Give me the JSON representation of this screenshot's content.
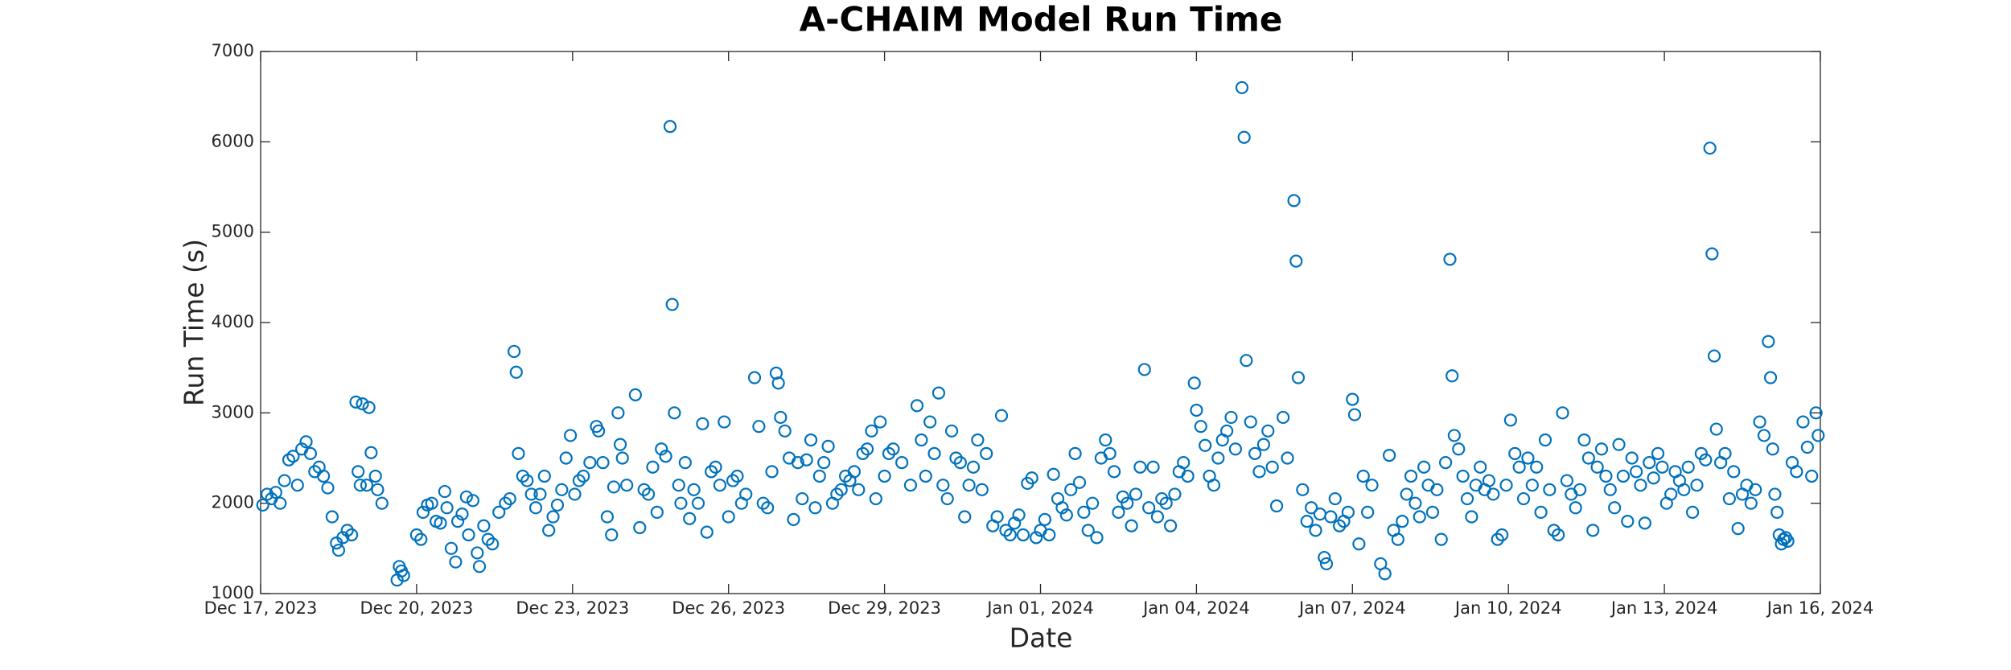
{
  "chart_data": {
    "type": "scatter",
    "title": "A-CHAIM Model Run Time",
    "x_label": "Date",
    "y_label": "Run Time (s)",
    "xlim": [
      "2023-12-17T00:00",
      "2024-01-16T00:00"
    ],
    "xticks": [
      {
        "value": "2023-12-17T00:00",
        "label": "Dec 17, 2023"
      },
      {
        "value": "2023-12-20T00:00",
        "label": "Dec 20, 2023"
      },
      {
        "value": "2023-12-23T00:00",
        "label": "Dec 23, 2023"
      },
      {
        "value": "2023-12-26T00:00",
        "label": "Dec 26, 2023"
      },
      {
        "value": "2023-12-29T00:00",
        "label": "Dec 29, 2023"
      },
      {
        "value": "2024-01-01T00:00",
        "label": "Jan 01, 2024"
      },
      {
        "value": "2024-01-04T00:00",
        "label": "Jan 04, 2024"
      },
      {
        "value": "2024-01-07T00:00",
        "label": "Jan 07, 2024"
      },
      {
        "value": "2024-01-10T00:00",
        "label": "Jan 10, 2024"
      },
      {
        "value": "2024-01-13T00:00",
        "label": "Jan 13, 2024"
      },
      {
        "value": "2024-01-16T00:00",
        "label": "Jan 16, 2024"
      }
    ],
    "ylim": [
      1000,
      7000
    ],
    "yticks": [
      1000,
      2000,
      3000,
      4000,
      5000,
      6000,
      7000
    ],
    "grid": false,
    "color": "#0072bd",
    "x": [
      "2023-12-17T01:00",
      "2023-12-17T03:00",
      "2023-12-17T05:00",
      "2023-12-17T07:00",
      "2023-12-17T09:00",
      "2023-12-17T11:00",
      "2023-12-17T13:00",
      "2023-12-17T15:00",
      "2023-12-17T17:00",
      "2023-12-17T19:00",
      "2023-12-17T21:00",
      "2023-12-17T23:00",
      "2023-12-18T01:00",
      "2023-12-18T03:00",
      "2023-12-18T05:00",
      "2023-12-18T07:00",
      "2023-12-18T09:00",
      "2023-12-18T11:00",
      "2023-12-18T12:00",
      "2023-12-18T14:00",
      "2023-12-18T16:00",
      "2023-12-18T18:00",
      "2023-12-18T20:00",
      "2023-12-18T21:00",
      "2023-12-18T22:00",
      "2023-12-18T23:00",
      "2023-12-19T01:00",
      "2023-12-19T02:00",
      "2023-12-19T03:00",
      "2023-12-19T05:00",
      "2023-12-19T06:00",
      "2023-12-19T08:00",
      "2023-12-19T15:00",
      "2023-12-19T16:00",
      "2023-12-19T17:00",
      "2023-12-19T18:00",
      "2023-12-20T00:00",
      "2023-12-20T02:00",
      "2023-12-20T03:00",
      "2023-12-20T05:00",
      "2023-12-20T07:00",
      "2023-12-20T09:00",
      "2023-12-20T11:00",
      "2023-12-20T13:00",
      "2023-12-20T14:00",
      "2023-12-20T16:00",
      "2023-12-20T18:00",
      "2023-12-20T19:00",
      "2023-12-20T21:00",
      "2023-12-20T23:00",
      "2023-12-21T00:00",
      "2023-12-21T02:00",
      "2023-12-21T04:00",
      "2023-12-21T05:00",
      "2023-12-21T07:00",
      "2023-12-21T09:00",
      "2023-12-21T11:00",
      "2023-12-21T14:00",
      "2023-12-21T17:00",
      "2023-12-21T19:00",
      "2023-12-21T21:00",
      "2023-12-21T22:00",
      "2023-12-21T23:00",
      "2023-12-22T01:00",
      "2023-12-22T03:00",
      "2023-12-22T05:00",
      "2023-12-22T07:00",
      "2023-12-22T09:00",
      "2023-12-22T11:00",
      "2023-12-22T13:00",
      "2023-12-22T15:00",
      "2023-12-22T17:00",
      "2023-12-22T19:00",
      "2023-12-22T21:00",
      "2023-12-22T23:00",
      "2023-12-23T01:00",
      "2023-12-23T03:00",
      "2023-12-23T05:00",
      "2023-12-23T08:00",
      "2023-12-23T11:00",
      "2023-12-23T12:00",
      "2023-12-23T14:00",
      "2023-12-23T16:00",
      "2023-12-23T18:00",
      "2023-12-23T19:00",
      "2023-12-23T21:00",
      "2023-12-23T22:00",
      "2023-12-23T23:00",
      "2023-12-24T01:00",
      "2023-12-24T05:00",
      "2023-12-24T07:00",
      "2023-12-24T09:00",
      "2023-12-24T11:00",
      "2023-12-24T13:00",
      "2023-12-24T15:00",
      "2023-12-24T17:00",
      "2023-12-24T19:00",
      "2023-12-24T21:00",
      "2023-12-24T22:00",
      "2023-12-24T23:00",
      "2023-12-25T01:00",
      "2023-12-25T02:00",
      "2023-12-25T04:00",
      "2023-12-25T06:00",
      "2023-12-25T08:00",
      "2023-12-25T10:00",
      "2023-12-25T12:00",
      "2023-12-25T14:00",
      "2023-12-25T16:00",
      "2023-12-25T18:00",
      "2023-12-25T20:00",
      "2023-12-25T22:00",
      "2023-12-26T00:00",
      "2023-12-26T02:00",
      "2023-12-26T04:00",
      "2023-12-26T06:00",
      "2023-12-26T08:00",
      "2023-12-26T12:00",
      "2023-12-26T14:00",
      "2023-12-26T16:00",
      "2023-12-26T18:00",
      "2023-12-26T20:00",
      "2023-12-26T22:00",
      "2023-12-26T23:00",
      "2023-12-27T00:00",
      "2023-12-27T02:00",
      "2023-12-27T04:00",
      "2023-12-27T06:00",
      "2023-12-27T08:00",
      "2023-12-27T10:00",
      "2023-12-27T12:00",
      "2023-12-27T14:00",
      "2023-12-27T16:00",
      "2023-12-27T18:00",
      "2023-12-27T20:00",
      "2023-12-27T22:00",
      "2023-12-28T00:00",
      "2023-12-28T02:00",
      "2023-12-28T04:00",
      "2023-12-28T06:00",
      "2023-12-28T08:00",
      "2023-12-28T10:00",
      "2023-12-28T12:00",
      "2023-12-28T14:00",
      "2023-12-28T16:00",
      "2023-12-28T18:00",
      "2023-12-28T20:00",
      "2023-12-28T22:00",
      "2023-12-29T00:00",
      "2023-12-29T02:00",
      "2023-12-29T04:00",
      "2023-12-29T08:00",
      "2023-12-29T12:00",
      "2023-12-29T15:00",
      "2023-12-29T17:00",
      "2023-12-29T19:00",
      "2023-12-29T21:00",
      "2023-12-29T23:00",
      "2023-12-30T01:00",
      "2023-12-30T03:00",
      "2023-12-30T05:00",
      "2023-12-30T07:00",
      "2023-12-30T09:00",
      "2023-12-30T11:00",
      "2023-12-30T13:00",
      "2023-12-30T15:00",
      "2023-12-30T17:00",
      "2023-12-30T19:00",
      "2023-12-30T21:00",
      "2023-12-30T23:00",
      "2023-12-31T02:00",
      "2023-12-31T04:00",
      "2023-12-31T06:00",
      "2023-12-31T08:00",
      "2023-12-31T10:00",
      "2023-12-31T12:00",
      "2023-12-31T14:00",
      "2023-12-31T16:00",
      "2023-12-31T18:00",
      "2023-12-31T20:00",
      "2023-12-31T22:00",
      "2024-01-01T00:00",
      "2024-01-01T02:00",
      "2024-01-01T04:00",
      "2024-01-01T06:00",
      "2024-01-01T08:00",
      "2024-01-01T10:00",
      "2024-01-01T12:00",
      "2024-01-01T14:00",
      "2024-01-01T16:00",
      "2024-01-01T18:00",
      "2024-01-01T20:00",
      "2024-01-01T22:00",
      "2024-01-02T00:00",
      "2024-01-02T02:00",
      "2024-01-02T04:00",
      "2024-01-02T06:00",
      "2024-01-02T08:00",
      "2024-01-02T10:00",
      "2024-01-02T12:00",
      "2024-01-02T14:00",
      "2024-01-02T16:00",
      "2024-01-02T18:00",
      "2024-01-02T20:00",
      "2024-01-02T22:00",
      "2024-01-03T00:00",
      "2024-01-03T02:00",
      "2024-01-03T04:00",
      "2024-01-03T06:00",
      "2024-01-03T08:00",
      "2024-01-03T10:00",
      "2024-01-03T12:00",
      "2024-01-03T14:00",
      "2024-01-03T16:00",
      "2024-01-03T18:00",
      "2024-01-03T20:00",
      "2024-01-03T23:00",
      "2024-01-04T00:00",
      "2024-01-04T02:00",
      "2024-01-04T04:00",
      "2024-01-04T06:00",
      "2024-01-04T08:00",
      "2024-01-04T10:00",
      "2024-01-04T12:00",
      "2024-01-04T14:00",
      "2024-01-04T16:00",
      "2024-01-04T18:00",
      "2024-01-04T21:00",
      "2024-01-04T22:00",
      "2024-01-04T23:00",
      "2024-01-05T01:00",
      "2024-01-05T03:00",
      "2024-01-05T05:00",
      "2024-01-05T07:00",
      "2024-01-05T09:00",
      "2024-01-05T11:00",
      "2024-01-05T13:00",
      "2024-01-05T16:00",
      "2024-01-05T18:00",
      "2024-01-05T21:00",
      "2024-01-05T22:00",
      "2024-01-05T23:00",
      "2024-01-06T01:00",
      "2024-01-06T03:00",
      "2024-01-06T05:00",
      "2024-01-06T07:00",
      "2024-01-06T09:00",
      "2024-01-06T11:00",
      "2024-01-06T12:00",
      "2024-01-06T14:00",
      "2024-01-06T16:00",
      "2024-01-06T18:00",
      "2024-01-06T20:00",
      "2024-01-06T22:00",
      "2024-01-07T00:00",
      "2024-01-07T01:00",
      "2024-01-07T03:00",
      "2024-01-07T05:00",
      "2024-01-07T07:00",
      "2024-01-07T09:00",
      "2024-01-07T13:00",
      "2024-01-07T15:00",
      "2024-01-07T17:00",
      "2024-01-07T19:00",
      "2024-01-07T21:00",
      "2024-01-07T23:00",
      "2024-01-08T01:00",
      "2024-01-08T03:00",
      "2024-01-08T05:00",
      "2024-01-08T07:00",
      "2024-01-08T09:00",
      "2024-01-08T11:00",
      "2024-01-08T13:00",
      "2024-01-08T15:00",
      "2024-01-08T17:00",
      "2024-01-08T19:00",
      "2024-01-08T21:00",
      "2024-01-08T22:00",
      "2024-01-08T23:00",
      "2024-01-09T01:00",
      "2024-01-09T03:00",
      "2024-01-09T05:00",
      "2024-01-09T07:00",
      "2024-01-09T09:00",
      "2024-01-09T11:00",
      "2024-01-09T13:00",
      "2024-01-09T15:00",
      "2024-01-09T17:00",
      "2024-01-09T19:00",
      "2024-01-09T21:00",
      "2024-01-09T23:00",
      "2024-01-10T01:00",
      "2024-01-10T03:00",
      "2024-01-10T05:00",
      "2024-01-10T07:00",
      "2024-01-10T09:00",
      "2024-01-10T11:00",
      "2024-01-10T13:00",
      "2024-01-10T15:00",
      "2024-01-10T17:00",
      "2024-01-10T19:00",
      "2024-01-10T21:00",
      "2024-01-10T23:00",
      "2024-01-11T01:00",
      "2024-01-11T03:00",
      "2024-01-11T05:00",
      "2024-01-11T07:00",
      "2024-01-11T09:00",
      "2024-01-11T11:00",
      "2024-01-11T13:00",
      "2024-01-11T15:00",
      "2024-01-11T17:00",
      "2024-01-11T19:00",
      "2024-01-11T21:00",
      "2024-01-11T23:00",
      "2024-01-12T01:00",
      "2024-01-12T03:00",
      "2024-01-12T05:00",
      "2024-01-12T07:00",
      "2024-01-12T09:00",
      "2024-01-12T11:00",
      "2024-01-12T13:00",
      "2024-01-12T15:00",
      "2024-01-12T17:00",
      "2024-01-12T19:00",
      "2024-01-12T21:00",
      "2024-01-12T23:00",
      "2024-01-13T01:00",
      "2024-01-13T03:00",
      "2024-01-13T05:00",
      "2024-01-13T07:00",
      "2024-01-13T09:00",
      "2024-01-13T11:00",
      "2024-01-13T13:00",
      "2024-01-13T15:00",
      "2024-01-13T17:00",
      "2024-01-13T19:00",
      "2024-01-13T21:00",
      "2024-01-13T22:00",
      "2024-01-13T23:00",
      "2024-01-14T00:00",
      "2024-01-14T02:00",
      "2024-01-14T04:00",
      "2024-01-14T06:00",
      "2024-01-14T08:00",
      "2024-01-14T10:00",
      "2024-01-14T12:00",
      "2024-01-14T14:00",
      "2024-01-14T16:00",
      "2024-01-14T18:00",
      "2024-01-14T20:00",
      "2024-01-14T22:00",
      "2024-01-15T00:00",
      "2024-01-15T01:00",
      "2024-01-15T02:00",
      "2024-01-15T03:00",
      "2024-01-15T04:00",
      "2024-01-15T05:00",
      "2024-01-15T06:00",
      "2024-01-15T07:00",
      "2024-01-15T08:00",
      "2024-01-15T09:00",
      "2024-01-15T11:00",
      "2024-01-15T13:00",
      "2024-01-15T16:00",
      "2024-01-15T18:00",
      "2024-01-15T20:00",
      "2024-01-15T22:00",
      "2024-01-15T23:00"
    ],
    "values": [
      1980,
      2100,
      2050,
      2120,
      2000,
      2250,
      2480,
      2520,
      2200,
      2600,
      2680,
      2550,
      2350,
      2400,
      2300,
      2170,
      1850,
      1560,
      1480,
      1620,
      1700,
      1650,
      3120,
      2350,
      2200,
      3100,
      2200,
      3060,
      2560,
      2300,
      2150,
      2000,
      1150,
      1300,
      1250,
      1200,
      1650,
      1600,
      1900,
      1980,
      2000,
      1800,
      1780,
      2130,
      1950,
      1500,
      1350,
      1800,
      1880,
      2070,
      1650,
      2030,
      1450,
      1300,
      1750,
      1600,
      1550,
      1900,
      2000,
      2050,
      3680,
      3450,
      2550,
      2300,
      2250,
      2100,
      1950,
      2100,
      2300,
      1700,
      1850,
      1980,
      2150,
      2500,
      2750,
      2100,
      2250,
      2300,
      2450,
      2850,
      2800,
      2450,
      1850,
      1650,
      2180,
      3000,
      2650,
      2500,
      2200,
      3200,
      1730,
      2150,
      2100,
      2400,
      1900,
      2600,
      2520,
      6170,
      4200,
      3000,
      2200,
      2000,
      2450,
      1830,
      2150,
      2000,
      2880,
      1680,
      2350,
      2400,
      2200,
      2900,
      1850,
      2250,
      2300,
      2000,
      2100,
      3390,
      2850,
      2000,
      1950,
      2350,
      3440,
      3330,
      2950,
      2800,
      2500,
      1820,
      2450,
      2050,
      2480,
      2700,
      1950,
      2300,
      2450,
      2630,
      2000,
      2100,
      2150,
      2300,
      2250,
      2350,
      2150,
      2550,
      2600,
      2800,
      2050,
      2900,
      2300,
      2550,
      2600,
      2450,
      2200,
      3080,
      2700,
      2300,
      2900,
      2550,
      3220,
      2200,
      2050,
      2800,
      2500,
      2450,
      1850,
      2200,
      2400,
      2700,
      2150,
      2550,
      1750,
      1850,
      2970,
      1700,
      1650,
      1780,
      1870,
      1650,
      2220,
      2280,
      1620,
      1700,
      1820,
      1650,
      2320,
      2050,
      1950,
      1870,
      2150,
      2550,
      2230,
      1900,
      1700,
      2000,
      1620,
      2500,
      2700,
      2550,
      2350,
      1900,
      2070,
      2000,
      1750,
      2100,
      2400,
      3480,
      1950,
      2400,
      1850,
      2050,
      2000,
      1750,
      2100,
      2350,
      2450,
      2300,
      3330,
      3030,
      2850,
      2640,
      2300,
      2200,
      2500,
      2700,
      2800,
      2950,
      2600,
      6600,
      6050,
      3580,
      2900,
      2550,
      2350,
      2650,
      2800,
      2400,
      1970,
      2950,
      2500,
      5350,
      4680,
      3390,
      2150,
      1800,
      1950,
      1700,
      1880,
      1400,
      1330,
      1850,
      2050,
      1750,
      1800,
      1900,
      3150,
      2980,
      1550,
      2300,
      1900,
      2200,
      1330,
      1220,
      2530,
      1700,
      1600,
      1800,
      2100,
      2300,
      2000,
      1850,
      2400,
      2200,
      1900,
      2150,
      1600,
      2450,
      4700,
      3410,
      2750,
      2600,
      2300,
      2050,
      1850,
      2200,
      2400,
      2150,
      2250,
      2100,
      1600,
      1650,
      2200,
      2920,
      2550,
      2400,
      2050,
      2500,
      2200,
      2400,
      1900,
      2700,
      2150,
      1700,
      1650,
      3000,
      2250,
      2100,
      1950,
      2150,
      2700,
      2500,
      1700,
      2400,
      2600,
      2300,
      2150,
      1950,
      2650,
      2300,
      1800,
      2500,
      2350,
      2200,
      1780,
      2450,
      2280,
      2550,
      2400,
      2000,
      2100,
      2350,
      2250,
      2150,
      2400,
      1900,
      2200,
      2550,
      2480,
      5930,
      4760,
      3630,
      2820,
      2450,
      2550,
      2050,
      2350,
      1720,
      2100,
      2200,
      2000,
      2150,
      2900,
      2750,
      3790,
      3390,
      2600,
      2100,
      1900,
      1650,
      1550,
      1600,
      1620,
      1580,
      2450,
      2350,
      2900,
      2620,
      2300,
      3000,
      2750
    ]
  }
}
